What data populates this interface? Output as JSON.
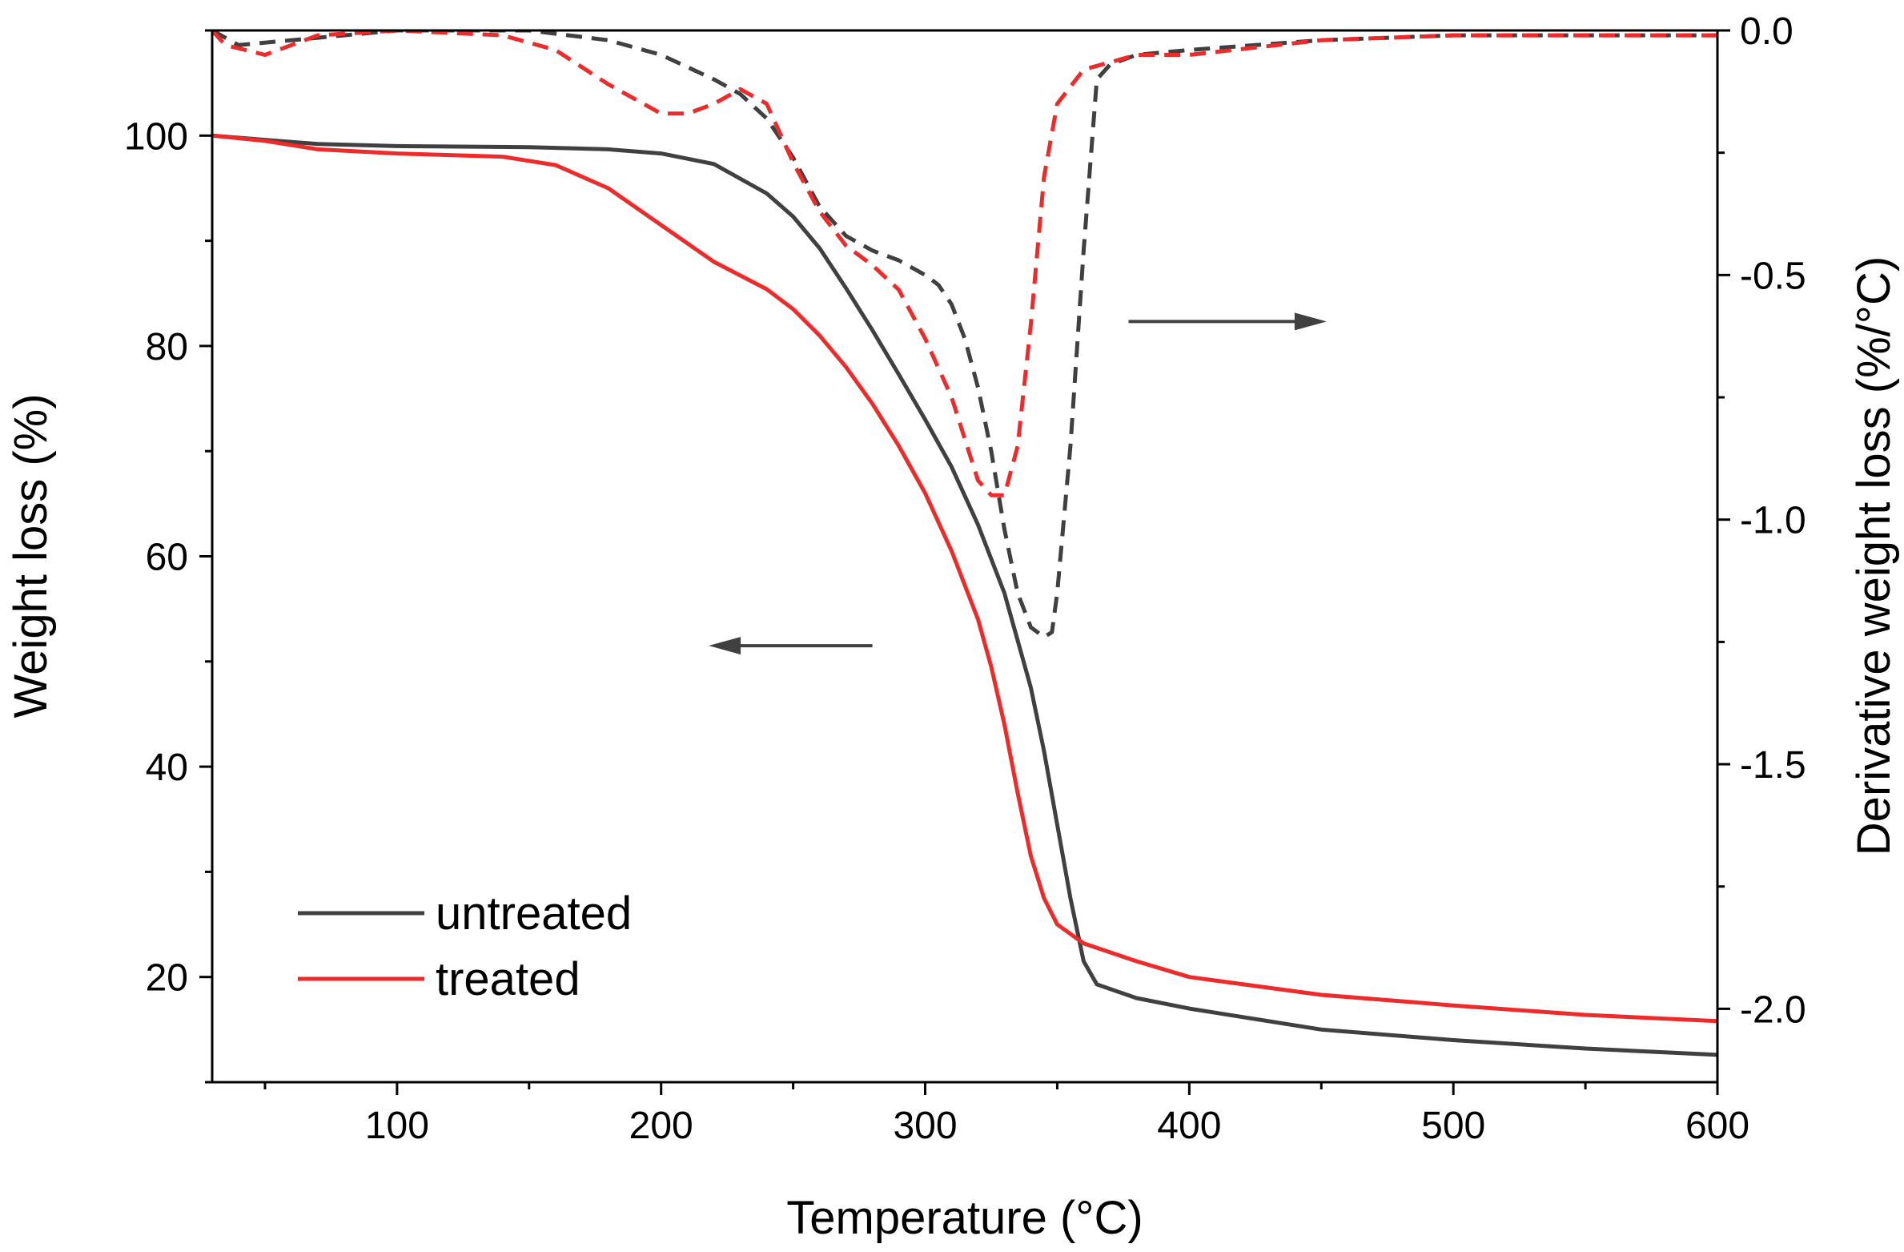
{
  "chart_data": {
    "type": "line",
    "title": "",
    "xlabel": "Temperature (°C)",
    "ylabel_left": "Weight loss (%)",
    "ylabel_right": "Derivative weight loss (%/°C)",
    "xlim": [
      30,
      600
    ],
    "ylim_left": [
      10,
      110
    ],
    "ylim_right": [
      -2.15,
      0.0
    ],
    "x_ticks": [
      100,
      200,
      300,
      400,
      500,
      600
    ],
    "y_left_ticks": [
      20,
      40,
      60,
      80,
      100
    ],
    "y_right_ticks": [
      0.0,
      -0.5,
      -1.0,
      -1.5,
      -2.0
    ],
    "x_tick_labels": [
      "100",
      "200",
      "300",
      "400",
      "500",
      "600"
    ],
    "y_left_tick_labels": [
      "20",
      "40",
      "60",
      "80",
      "100"
    ],
    "y_right_tick_labels": [
      "0.0",
      "-0.5",
      "-1.0",
      "-1.5",
      "-2.0"
    ],
    "grid": false,
    "legend": {
      "placement": "lower-left",
      "entries": [
        {
          "label": "untreated",
          "color": "#404040"
        },
        {
          "label": "treated",
          "color": "#ee2a2a"
        }
      ]
    },
    "annotations": [
      {
        "kind": "arrow",
        "direction": "left",
        "meaning": "weight loss curves read on left axis"
      },
      {
        "kind": "arrow",
        "direction": "right",
        "meaning": "derivative curves read on right axis"
      }
    ],
    "series": [
      {
        "name": "untreated",
        "kind": "weight",
        "axis": "left",
        "style": "solid",
        "color": "#404040",
        "x": [
          30,
          50,
          70,
          100,
          150,
          180,
          200,
          220,
          240,
          250,
          260,
          270,
          280,
          290,
          300,
          310,
          320,
          330,
          340,
          345,
          350,
          355,
          360,
          365,
          380,
          400,
          450,
          500,
          550,
          600
        ],
        "y": [
          100,
          99.6,
          99.2,
          99.0,
          98.9,
          98.7,
          98.3,
          97.3,
          94.5,
          92.3,
          89.3,
          85.5,
          81.5,
          77.3,
          73.0,
          68.5,
          63.0,
          56.5,
          47.5,
          41.5,
          34.5,
          27.5,
          21.5,
          19.3,
          18.0,
          17.0,
          15.0,
          14.0,
          13.2,
          12.6
        ]
      },
      {
        "name": "treated",
        "kind": "weight",
        "axis": "left",
        "style": "solid",
        "color": "#ee2a2a",
        "x": [
          30,
          50,
          70,
          100,
          140,
          160,
          180,
          200,
          220,
          240,
          250,
          260,
          270,
          280,
          290,
          300,
          310,
          320,
          325,
          330,
          335,
          340,
          345,
          350,
          360,
          380,
          400,
          450,
          500,
          550,
          600
        ],
        "y": [
          100,
          99.5,
          98.7,
          98.3,
          98.0,
          97.2,
          95.0,
          91.5,
          88.0,
          85.4,
          83.5,
          81.0,
          78.0,
          74.5,
          70.5,
          66.0,
          60.5,
          54.0,
          49.5,
          44.0,
          37.5,
          31.5,
          27.5,
          25.0,
          23.2,
          21.5,
          20.0,
          18.3,
          17.3,
          16.4,
          15.8
        ]
      },
      {
        "name": "untreated",
        "kind": "derivative",
        "axis": "right",
        "style": "dashed",
        "color": "#404040",
        "x": [
          30,
          40,
          60,
          80,
          100,
          150,
          180,
          200,
          220,
          230,
          240,
          250,
          260,
          270,
          280,
          290,
          300,
          305,
          310,
          315,
          320,
          325,
          330,
          335,
          340,
          345,
          348,
          350,
          355,
          360,
          365,
          370,
          380,
          400,
          450,
          500,
          600
        ],
        "y": [
          0.0,
          -0.03,
          -0.02,
          -0.01,
          0.0,
          0.0,
          -0.02,
          -0.05,
          -0.1,
          -0.13,
          -0.18,
          -0.26,
          -0.36,
          -0.42,
          -0.45,
          -0.47,
          -0.5,
          -0.52,
          -0.56,
          -0.63,
          -0.73,
          -0.86,
          -1.02,
          -1.15,
          -1.22,
          -1.24,
          -1.23,
          -1.15,
          -0.85,
          -0.45,
          -0.1,
          -0.07,
          -0.05,
          -0.04,
          -0.02,
          -0.01,
          -0.01
        ]
      },
      {
        "name": "treated",
        "kind": "derivative",
        "axis": "right",
        "style": "dashed",
        "color": "#ee2a2a",
        "x": [
          30,
          35,
          50,
          70,
          100,
          140,
          160,
          180,
          200,
          210,
          220,
          230,
          240,
          250,
          260,
          270,
          280,
          290,
          300,
          310,
          320,
          325,
          330,
          335,
          340,
          345,
          350,
          360,
          380,
          400,
          450,
          500,
          600
        ],
        "y": [
          0.0,
          -0.03,
          -0.05,
          -0.01,
          0.0,
          -0.01,
          -0.04,
          -0.11,
          -0.17,
          -0.17,
          -0.15,
          -0.12,
          -0.15,
          -0.27,
          -0.37,
          -0.44,
          -0.48,
          -0.53,
          -0.63,
          -0.75,
          -0.92,
          -0.95,
          -0.95,
          -0.85,
          -0.6,
          -0.3,
          -0.15,
          -0.08,
          -0.05,
          -0.05,
          -0.02,
          -0.01,
          -0.01
        ]
      }
    ]
  }
}
